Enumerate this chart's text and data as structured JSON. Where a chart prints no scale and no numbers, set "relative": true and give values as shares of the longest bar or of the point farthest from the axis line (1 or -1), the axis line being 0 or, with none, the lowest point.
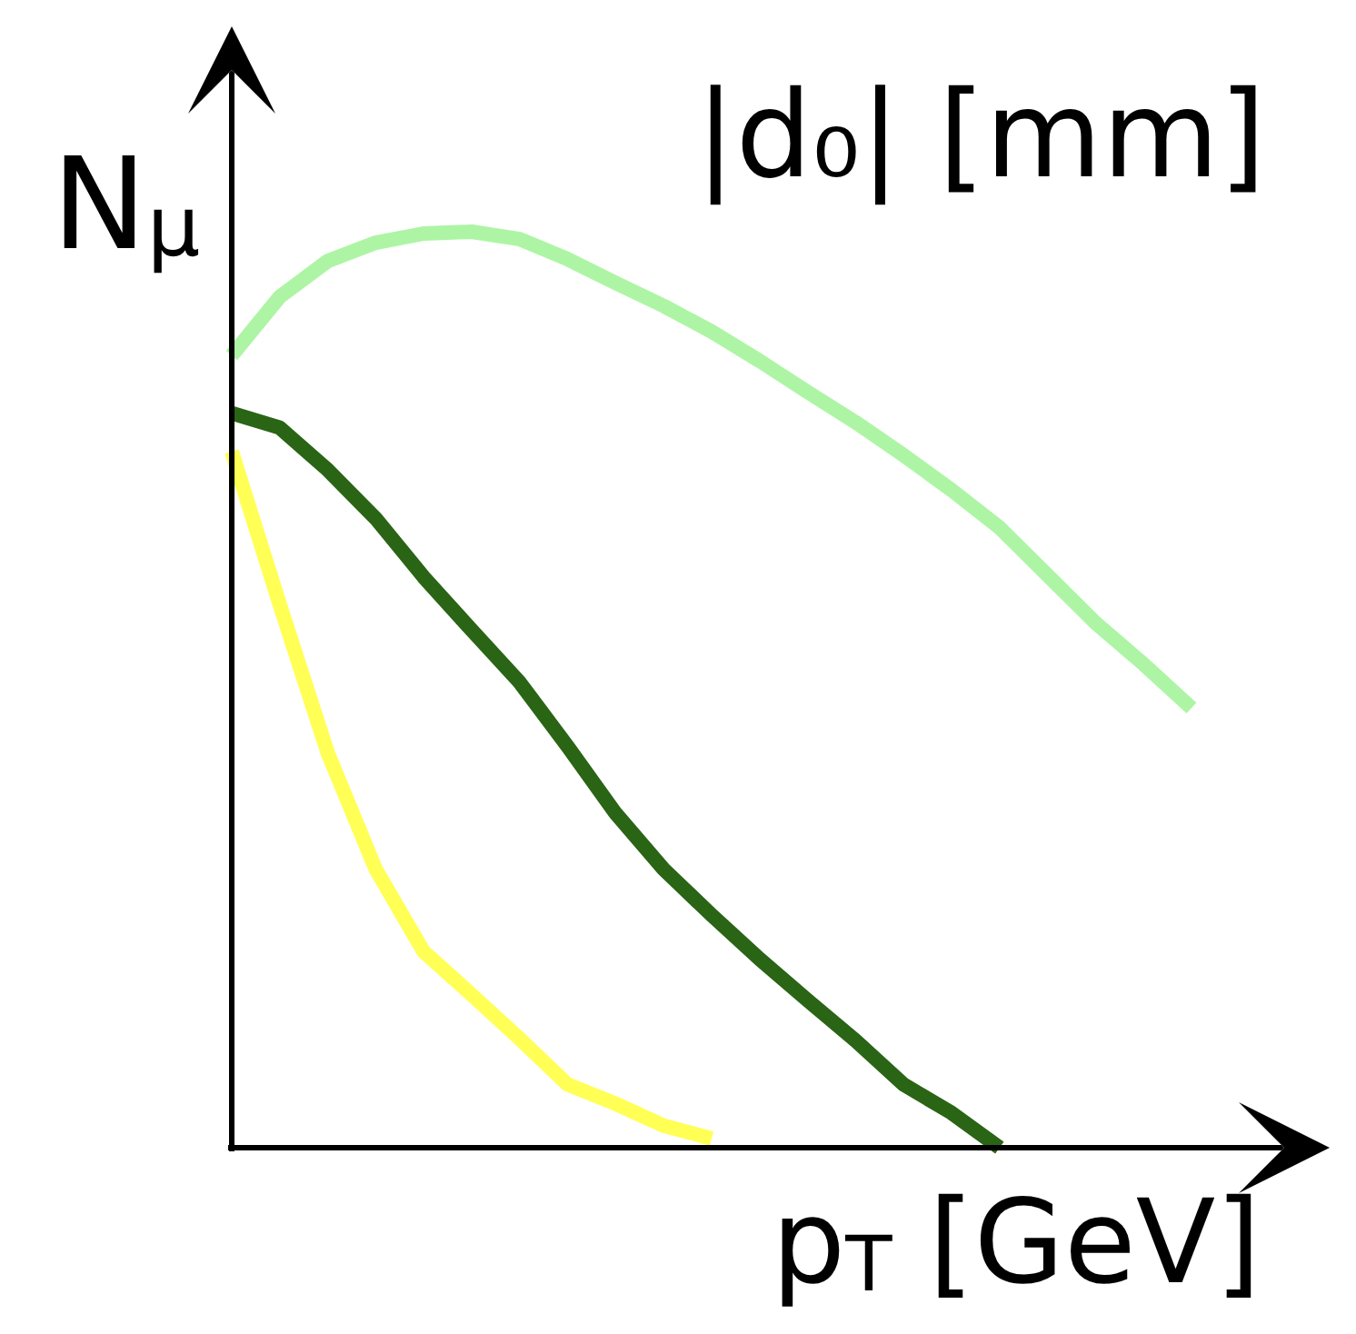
{
  "chart_data": {
    "type": "line",
    "relative": true,
    "xlabel": "p$_{T}$ [GeV]",
    "ylabel": "N$_{μ}$",
    "annotations": [
      "|d₀| [mm]"
    ],
    "line_style": "solid",
    "categories": [
      null,
      null,
      null,
      null,
      null,
      null,
      null,
      null,
      null,
      null,
      null,
      null,
      null,
      null,
      null,
      null,
      null,
      null,
      null,
      null,
      null
    ],
    "series": [
      {
        "color": "#adf5a5",
        "values": [
          0.865,
          0.929,
          0.968,
          0.988,
          0.998,
          1.0,
          0.992,
          0.97,
          0.944,
          0.919,
          0.891,
          0.859,
          0.825,
          0.792,
          0.756,
          0.718,
          0.677,
          0.625,
          0.573,
          0.528,
          0.48
        ]
      },
      {
        "color": "#2a6415",
        "values": [
          0.802,
          0.786,
          0.74,
          0.687,
          0.623,
          0.565,
          0.508,
          0.438,
          0.365,
          0.304,
          0.254,
          0.206,
          0.161,
          0.117,
          0.069,
          0.038,
          0,
          null,
          null,
          null,
          null
        ]
      },
      {
        "color": "#ffff55",
        "values": [
          0.76,
          0.593,
          0.431,
          0.304,
          0.214,
          0.167,
          0.119,
          0.069,
          0.048,
          0.024,
          0.01,
          null,
          null,
          null,
          null,
          null,
          null,
          null,
          null,
          null,
          null
        ]
      }
    ]
  }
}
